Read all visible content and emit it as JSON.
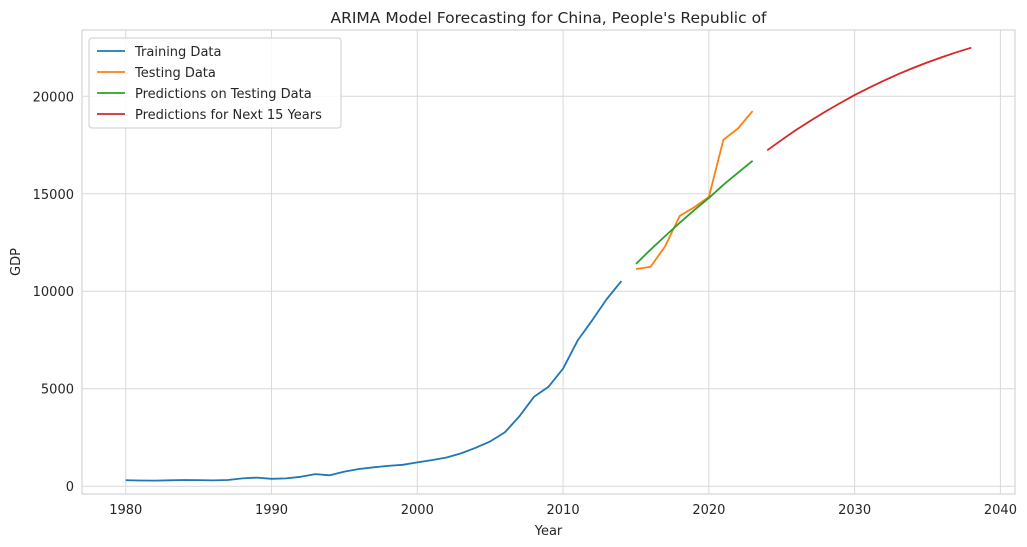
{
  "chart_data": {
    "type": "line",
    "title": "ARIMA Model Forecasting for China, People's Republic of",
    "xlabel": "Year",
    "ylabel": "GDP",
    "xlim": [
      1977,
      2041
    ],
    "ylim": [
      -400,
      23400
    ],
    "xticks": [
      1980,
      1990,
      2000,
      2010,
      2020,
      2030,
      2040
    ],
    "yticks": [
      0,
      5000,
      10000,
      15000,
      20000
    ],
    "grid": true,
    "legend_position": "top-left",
    "series": [
      {
        "name": "Training Data",
        "color": "#1f77b4",
        "x": [
          1980,
          1981,
          1982,
          1983,
          1984,
          1985,
          1986,
          1987,
          1988,
          1989,
          1990,
          1991,
          1992,
          1993,
          1994,
          1995,
          1996,
          1997,
          1998,
          1999,
          2000,
          2001,
          2002,
          2003,
          2004,
          2005,
          2006,
          2007,
          2008,
          2009,
          2010,
          2011,
          2012,
          2013,
          2014
        ],
        "y": [
          310,
          295,
          285,
          305,
          320,
          315,
          300,
          320,
          400,
          440,
          380,
          400,
          480,
          620,
          560,
          750,
          880,
          970,
          1040,
          1100,
          1220,
          1340,
          1470,
          1680,
          1970,
          2300,
          2760,
          3580,
          4580,
          5100,
          6030,
          7480,
          8510,
          9600,
          10520
        ]
      },
      {
        "name": "Testing Data",
        "color": "#ff7f0e",
        "x": [
          2015,
          2016,
          2017,
          2018,
          2019,
          2020,
          2021,
          2022,
          2023
        ],
        "y": [
          11140,
          11250,
          12300,
          13860,
          14310,
          14840,
          17770,
          18350,
          19240
        ]
      },
      {
        "name": "Predictions on Testing Data",
        "color": "#2ca02c",
        "x": [
          2015,
          2016,
          2017,
          2018,
          2019,
          2020,
          2021,
          2022,
          2023
        ],
        "y": [
          11400,
          12130,
          12830,
          13510,
          14160,
          14790,
          15460,
          16080,
          16690
        ]
      },
      {
        "name": "Predictions for Next 15 Years",
        "color": "#d62728",
        "x": [
          2024,
          2025,
          2026,
          2027,
          2028,
          2029,
          2030,
          2031,
          2032,
          2033,
          2034,
          2035,
          2036,
          2037,
          2038
        ],
        "y": [
          17230,
          17770,
          18280,
          18760,
          19220,
          19650,
          20060,
          20440,
          20800,
          21140,
          21450,
          21740,
          22010,
          22260,
          22490
        ]
      }
    ]
  }
}
